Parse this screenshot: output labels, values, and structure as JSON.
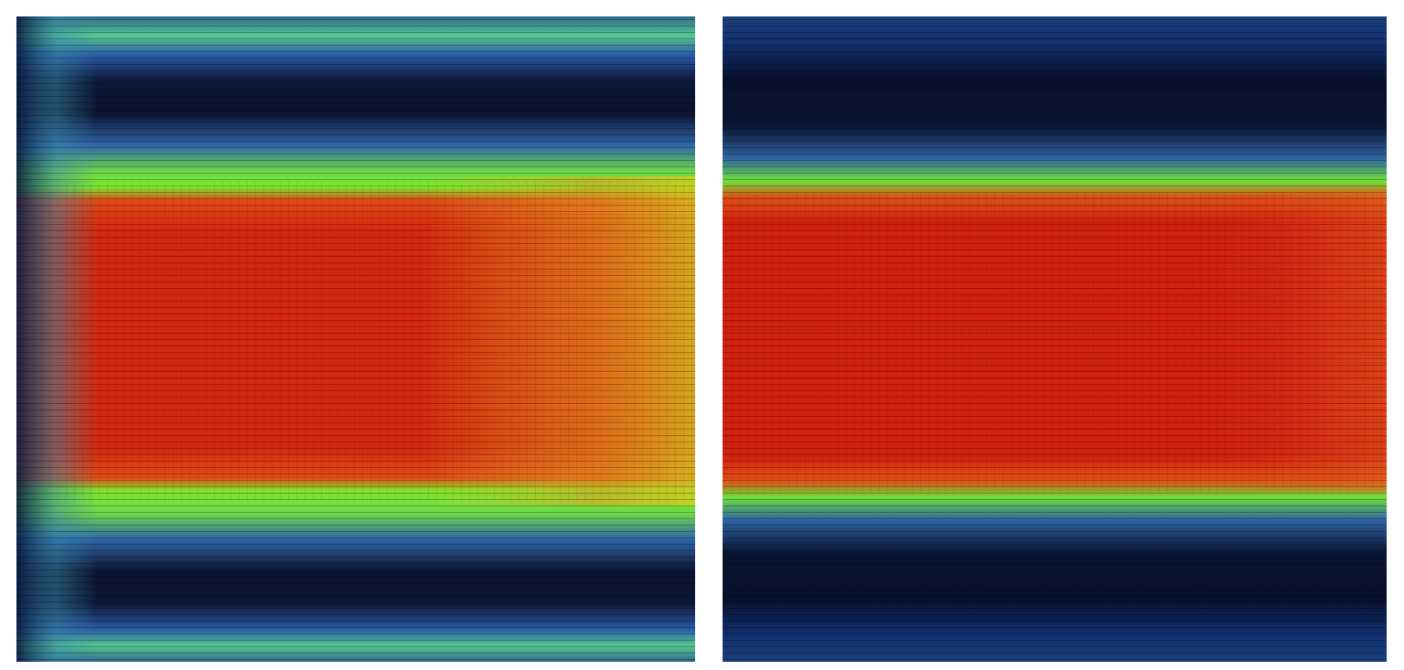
{
  "figure": {
    "panels": [
      {
        "id": "left",
        "description_color_map": [
          "#0a0f1e",
          "#1f3f8a",
          "#39c9a0",
          "#7de82a",
          "#f2e020",
          "#ff6a10",
          "#d81a08"
        ],
        "jet_core_color": "#d62a10",
        "jet_outlet_color": "#e8c020",
        "shear_layer_color": "#7ee82c",
        "recirculation_color": "#0c1430",
        "jet_spread": "widening-near-outlet"
      },
      {
        "id": "right",
        "description_color_map": [
          "#0a0f1e",
          "#1f3f8a",
          "#39c9a0",
          "#7de82a",
          "#f2e020",
          "#ff6a10",
          "#d81a08"
        ],
        "jet_core_color": "#d42010",
        "jet_outlet_color": "#e04a14",
        "shear_layer_color": "#6ee03a",
        "recirculation_color": "#07102a",
        "jet_spread": "uniform"
      }
    ]
  }
}
